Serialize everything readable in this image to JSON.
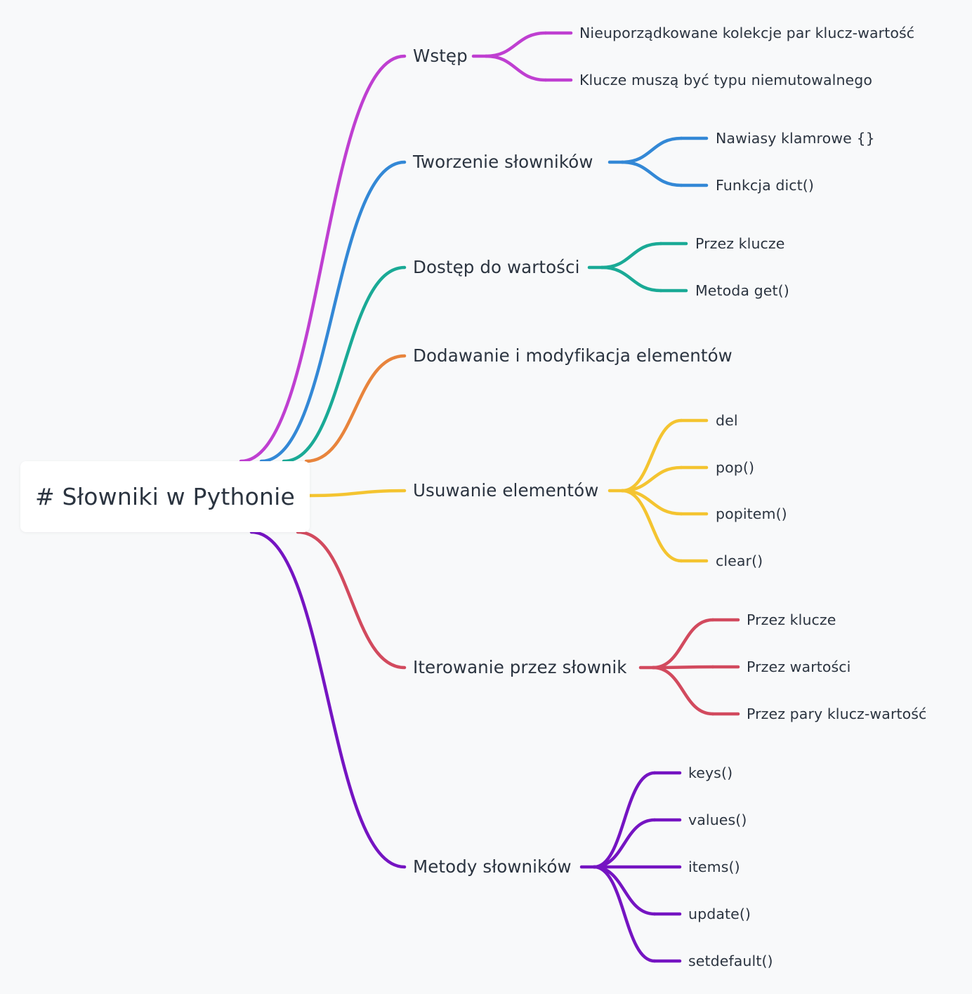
{
  "root": {
    "label": "# Słowniki w Pythonie"
  },
  "branches": [
    {
      "label": "Wstęp",
      "color": "#bf3fd1",
      "children": [
        "Nieuporządkowane kolekcje par klucz-wartość",
        "Klucze muszą być typu niemutowalnego"
      ]
    },
    {
      "label": "Tworzenie słowników",
      "color": "#3388d6",
      "children": [
        "Nawiasy klamrowe {}",
        "Funkcja dict()"
      ]
    },
    {
      "label": "Dostęp do wartości",
      "color": "#1aaa96",
      "children": [
        "Przez klucze",
        "Metoda get()"
      ]
    },
    {
      "label": "Dodawanie i modyfikacja elementów",
      "color": "#e8843c",
      "children": []
    },
    {
      "label": "Usuwanie elementów",
      "color": "#f4c430",
      "children": [
        "del",
        "pop()",
        "popitem()",
        "clear()"
      ]
    },
    {
      "label": "Iterowanie przez słownik",
      "color": "#d24a5e",
      "children": [
        "Przez klucze",
        "Przez wartości",
        "Przez pary klucz-wartość"
      ]
    },
    {
      "label": "Metody słowników",
      "color": "#7514c2",
      "children": [
        "keys()",
        "values()",
        "items()",
        "update()",
        "setdefault()"
      ]
    }
  ]
}
